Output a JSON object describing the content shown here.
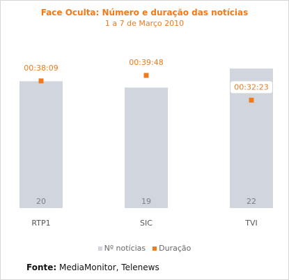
{
  "colors": {
    "accent": "#f07a1c",
    "bar": "#d1d6de",
    "bar_label": "#7a7f86",
    "axis_label": "#555555"
  },
  "chart_data": {
    "type": "bar",
    "title": "Face Oculta: Número e duração das notícias",
    "subtitle": "1 a 7 de Março 2010",
    "categories": [
      "RTP1",
      "SIC",
      "TVI"
    ],
    "series": [
      {
        "name": "Nº notícias",
        "type": "bar",
        "values": [
          20,
          19,
          22
        ]
      },
      {
        "name": "Duração",
        "type": "scatter",
        "values": [
          "00:38:09",
          "00:39:48",
          "00:32:23"
        ],
        "seconds": [
          2289,
          2388,
          1943
        ]
      }
    ],
    "ylim": [
      0,
      24
    ],
    "duration_ylim_seconds": [
      0,
      2740
    ],
    "legend": "bottom",
    "grid": false
  },
  "source": {
    "label": "Fonte:",
    "text": " MediaMonitor, Telenews"
  }
}
